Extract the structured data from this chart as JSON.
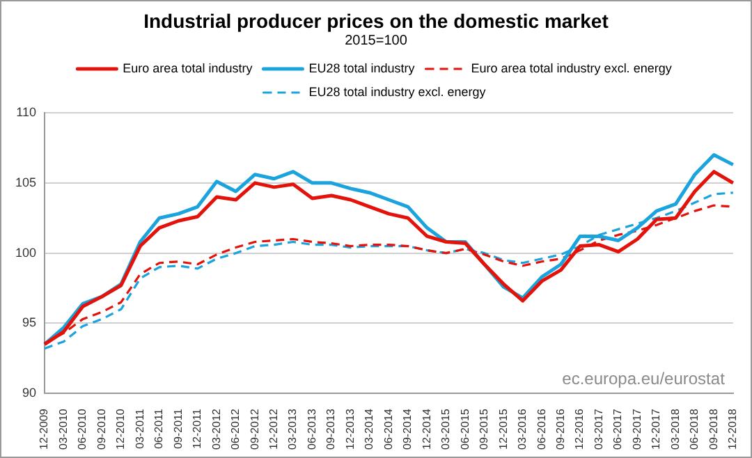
{
  "chart_data": {
    "type": "line",
    "title": "Industrial producer prices on the domestic market",
    "subtitle": "2015=100",
    "categories": [
      "12-2009",
      "03-2010",
      "06-2010",
      "09-2010",
      "12-2010",
      "03-2011",
      "06-2011",
      "09-2011",
      "12-2011",
      "03-2012",
      "06-2012",
      "09-2012",
      "12-2012",
      "03-2013",
      "06-2013",
      "09-2013",
      "12-2013",
      "03-2014",
      "06-2014",
      "09-2014",
      "12-2014",
      "03-2015",
      "06-2015",
      "09-2015",
      "12-2015",
      "03-2016",
      "06-2016",
      "09-2016",
      "12-2016",
      "03-2017",
      "06-2017",
      "09-2017",
      "12-2017",
      "03-2018",
      "06-2018",
      "09-2018",
      "12-2018"
    ],
    "series": [
      {
        "name": "Euro area total industry",
        "color": "#e3120b",
        "line_style": "solid",
        "values": [
          93.5,
          94.4,
          96.2,
          96.9,
          97.7,
          100.5,
          101.8,
          102.3,
          102.6,
          104.0,
          103.8,
          105.0,
          104.7,
          104.9,
          103.9,
          104.1,
          103.8,
          103.3,
          102.8,
          102.5,
          101.2,
          100.8,
          100.7,
          99.2,
          97.8,
          96.6,
          98.0,
          98.8,
          100.5,
          100.6,
          100.1,
          101.0,
          102.4,
          102.5,
          104.4,
          105.8,
          105.0
        ]
      },
      {
        "name": "EU28 total industry",
        "color": "#1aa3dc",
        "line_style": "solid",
        "values": [
          93.5,
          94.7,
          96.4,
          96.9,
          97.8,
          100.8,
          102.5,
          102.8,
          103.3,
          105.1,
          104.4,
          105.6,
          105.3,
          105.8,
          105.0,
          105.0,
          104.6,
          104.3,
          103.8,
          103.3,
          101.8,
          100.8,
          100.8,
          99.2,
          97.6,
          96.8,
          98.3,
          99.2,
          101.2,
          101.2,
          100.9,
          101.8,
          103.0,
          103.5,
          105.6,
          107.0,
          106.3
        ]
      },
      {
        "name": "Euro area total industry excl. energy",
        "color": "#e3120b",
        "line_style": "dashed",
        "values": [
          93.6,
          94.3,
          95.3,
          95.8,
          96.5,
          98.5,
          99.3,
          99.4,
          99.2,
          99.9,
          100.4,
          100.8,
          100.9,
          101.0,
          100.8,
          100.7,
          100.5,
          100.6,
          100.6,
          100.5,
          100.2,
          100.0,
          100.3,
          99.9,
          99.4,
          99.1,
          99.4,
          99.6,
          100.2,
          100.9,
          101.3,
          101.6,
          102.0,
          102.5,
          103.0,
          103.4,
          103.3
        ]
      },
      {
        "name": "EU28 total industry excl. energy",
        "color": "#1aa3dc",
        "line_style": "dashed",
        "values": [
          93.2,
          93.7,
          94.8,
          95.3,
          96.0,
          98.2,
          99.0,
          99.1,
          98.9,
          99.6,
          100.0,
          100.5,
          100.6,
          100.8,
          100.6,
          100.6,
          100.4,
          100.5,
          100.5,
          100.5,
          100.2,
          100.0,
          100.3,
          100.0,
          99.5,
          99.3,
          99.6,
          99.9,
          100.5,
          101.3,
          101.7,
          102.1,
          102.5,
          103.0,
          103.6,
          104.2,
          104.3
        ]
      }
    ],
    "ylim": [
      90,
      110
    ],
    "yticks": [
      90,
      95,
      100,
      105,
      110
    ],
    "grid": "y",
    "legend": "top",
    "marker": "none",
    "annotations": [
      "ec.europa.eu/eurostat"
    ]
  }
}
